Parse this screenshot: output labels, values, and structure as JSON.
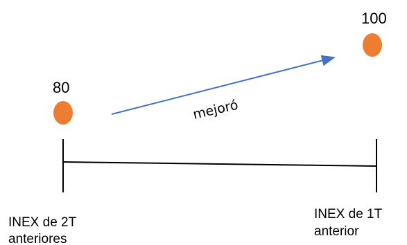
{
  "diagram": {
    "left_value": "80",
    "right_value": "100",
    "arrow_label": "mejoró",
    "left_label": [
      "INEX de 2T",
      "anteriores"
    ],
    "right_label": [
      "INEX de 1T",
      "anterior"
    ],
    "colors": {
      "dot": "#ED7D31",
      "arrow": "#4472C4",
      "line": "#000000"
    }
  }
}
